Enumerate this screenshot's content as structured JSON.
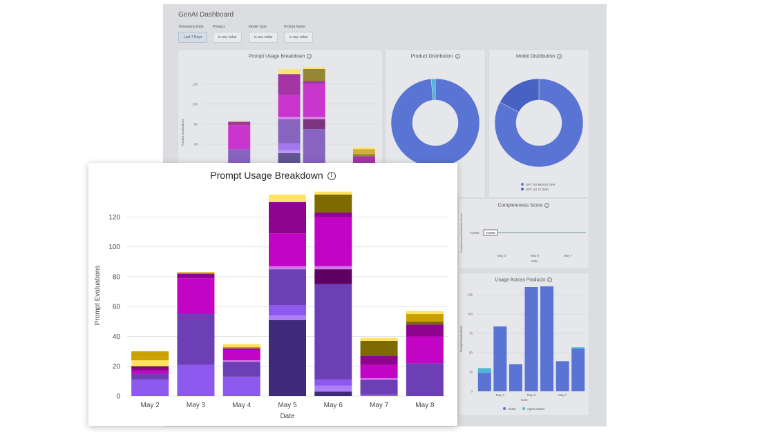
{
  "dashboard": {
    "title": "GenAI Dashboard",
    "filters": [
      {
        "label": "Timestamp Date",
        "value": "Last 7 Days"
      },
      {
        "label": "Product",
        "value": "is any value"
      },
      {
        "label": "Model Type",
        "value": "is any value"
      },
      {
        "label": "Prompt Name",
        "value": "is any value"
      }
    ]
  },
  "cards": {
    "prompt_usage": {
      "title": "Prompt Usage Breakdown"
    },
    "product_distribution": {
      "title": "Product Distribution"
    },
    "model_distribution": {
      "title": "Model Distribution",
      "legend": [
        "GPT 4O Mini 82.75%",
        "GPT 4O 17.25%"
      ]
    },
    "completeness": {
      "title": "Completeness Score",
      "ylabel": "Completeness Evaluation Score",
      "value_label": "0.0000",
      "ytick": "0.0000",
      "xticks": [
        "May 3",
        "May 5",
        "May 7"
      ],
      "xlabel": "Date"
    },
    "usage_products": {
      "title": "Usage Across Products",
      "legend": [
        "Alotto",
        "Agent Assist"
      ]
    }
  },
  "colors": {
    "dark_indigo": "#3e2a78",
    "indigo": "#6d3fb5",
    "violet": "#8d58ee",
    "lilac": "#b07ff8",
    "dark_purple": "#5e0062",
    "purple": "#8f048f",
    "magenta": "#c204c4",
    "orchid": "#cf79e8",
    "olive": "#7d6a00",
    "gold": "#c9a000",
    "light_gold": "#ffe361",
    "donut_blue": "#5a74d4",
    "donut_dark": "#4862c4",
    "teal": "#4fb6d6",
    "bar_blue": "#5a74d4"
  },
  "chart_data": [
    {
      "type": "bar",
      "stacked": true,
      "title": "Prompt Usage Breakdown",
      "xlabel": "Date",
      "ylabel": "Prompt Evaluations",
      "categories": [
        "May 2",
        "May 3",
        "May 4",
        "May 5",
        "May 6",
        "May 7",
        "May 8"
      ],
      "ylim": [
        0,
        135
      ],
      "yticks": [
        0,
        20,
        40,
        60,
        80,
        100,
        120
      ],
      "grid": true,
      "stacks": [
        [
          {
            "v": 11,
            "c": "violet"
          },
          {
            "v": 4,
            "c": "indigo"
          },
          {
            "v": 2,
            "c": "magenta"
          },
          {
            "v": 2,
            "c": "purple"
          },
          {
            "v": 1,
            "c": "dark_purple"
          },
          {
            "v": 4,
            "c": "light_gold"
          },
          {
            "v": 2,
            "c": "gold"
          },
          {
            "v": 4,
            "c": "gold"
          }
        ],
        [
          {
            "v": 21,
            "c": "violet"
          },
          {
            "v": 34,
            "c": "indigo"
          },
          {
            "v": 24,
            "c": "magenta"
          },
          {
            "v": 3,
            "c": "purple"
          },
          {
            "v": 1,
            "c": "gold"
          }
        ],
        [
          {
            "v": 13,
            "c": "violet"
          },
          {
            "v": 10,
            "c": "indigo"
          },
          {
            "v": 1,
            "c": "orchid"
          },
          {
            "v": 7,
            "c": "magenta"
          },
          {
            "v": 1,
            "c": "purple"
          },
          {
            "v": 1,
            "c": "gold"
          },
          {
            "v": 2,
            "c": "light_gold"
          }
        ],
        [
          {
            "v": 51,
            "c": "dark_indigo"
          },
          {
            "v": 3,
            "c": "lilac"
          },
          {
            "v": 7,
            "c": "violet"
          },
          {
            "v": 24,
            "c": "indigo"
          },
          {
            "v": 2,
            "c": "orchid"
          },
          {
            "v": 22,
            "c": "magenta"
          },
          {
            "v": 21,
            "c": "purple"
          },
          {
            "v": 5,
            "c": "light_gold"
          }
        ],
        [
          {
            "v": 3,
            "c": "dark_indigo"
          },
          {
            "v": 4,
            "c": "lilac"
          },
          {
            "v": 4,
            "c": "violet"
          },
          {
            "v": 64,
            "c": "indigo"
          },
          {
            "v": 10,
            "c": "dark_purple"
          },
          {
            "v": 2,
            "c": "orchid"
          },
          {
            "v": 33,
            "c": "magenta"
          },
          {
            "v": 3,
            "c": "purple"
          },
          {
            "v": 12,
            "c": "olive"
          },
          {
            "v": 2,
            "c": "light_gold"
          }
        ],
        [
          {
            "v": 1,
            "c": "violet"
          },
          {
            "v": 10,
            "c": "indigo"
          },
          {
            "v": 1,
            "c": "orchid"
          },
          {
            "v": 9,
            "c": "magenta"
          },
          {
            "v": 6,
            "c": "purple"
          },
          {
            "v": 10,
            "c": "olive"
          },
          {
            "v": 2,
            "c": "light_gold"
          }
        ],
        [
          {
            "v": 22,
            "c": "indigo"
          },
          {
            "v": 18,
            "c": "magenta"
          },
          {
            "v": 8,
            "c": "purple"
          },
          {
            "v": 2,
            "c": "olive"
          },
          {
            "v": 5,
            "c": "gold"
          },
          {
            "v": 2,
            "c": "light_gold"
          }
        ]
      ]
    },
    {
      "type": "pie",
      "title": "Product Distribution",
      "slices": [
        {
          "label": "",
          "value": 98.5,
          "c": "donut_blue"
        },
        {
          "label": "",
          "value": 1.5,
          "c": "teal"
        }
      ]
    },
    {
      "type": "pie",
      "title": "Model Distribution",
      "slices": [
        {
          "label": "GPT 4O Mini",
          "value": 82.75,
          "c": "donut_blue"
        },
        {
          "label": "GPT 4O",
          "value": 17.25,
          "c": "donut_dark"
        }
      ]
    },
    {
      "type": "line",
      "title": "Completeness Score",
      "ylabel": "Completeness Evaluation Score",
      "xlabel": "Date",
      "categories": [
        "May 3",
        "May 5",
        "May 7"
      ],
      "values": [
        0,
        0,
        0
      ]
    },
    {
      "type": "bar",
      "stacked": true,
      "title": "Usage Across Products",
      "ylabel": "Prompt Evaluations",
      "xlabel": "Date",
      "ylim": [
        0,
        135
      ],
      "yticks": [
        0,
        25,
        50,
        75,
        100,
        125
      ],
      "categories": [
        "May 2",
        "May 3",
        "May 4",
        "May 5",
        "May 6",
        "May 7",
        "May 8"
      ],
      "xticks": [
        "May 3",
        "May 5",
        "May 7"
      ],
      "series": [
        {
          "name": "Alotto",
          "values": [
            24,
            84,
            35,
            135,
            136,
            39,
            55
          ],
          "c": "bar_blue"
        },
        {
          "name": "Agent Assist",
          "values": [
            6,
            0,
            0,
            0,
            0,
            0,
            2
          ],
          "c": "teal"
        }
      ]
    }
  ]
}
